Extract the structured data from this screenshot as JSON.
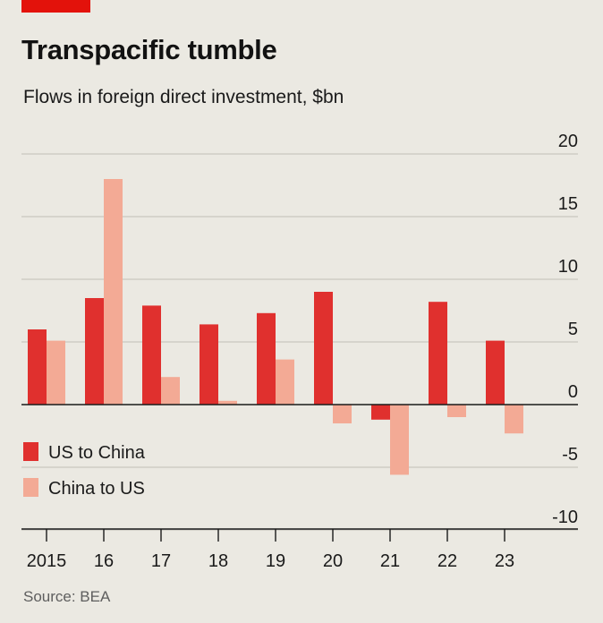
{
  "header": {
    "title": "Transpacific tumble",
    "subtitle": "Flows in foreign direct investment, $bn"
  },
  "footer": {
    "source": "Source: BEA"
  },
  "colors": {
    "accent": "#e3120b",
    "us_to_china": "#e0302e",
    "china_to_us": "#f3aa95",
    "grid": "#c9c7c0",
    "zero": "#1a1a1a"
  },
  "chart_data": {
    "type": "bar",
    "title": "Transpacific tumble",
    "subtitle": "Flows in foreign direct investment, $bn",
    "categories": [
      "2015",
      "16",
      "17",
      "18",
      "19",
      "20",
      "21",
      "22",
      "23"
    ],
    "series": [
      {
        "name": "US to China",
        "values": [
          6.0,
          8.5,
          7.9,
          6.4,
          7.3,
          9.0,
          -1.2,
          8.2,
          5.1
        ]
      },
      {
        "name": "China to US",
        "values": [
          5.1,
          18.0,
          2.2,
          0.3,
          3.6,
          -1.5,
          -5.6,
          -1.0,
          -2.3
        ]
      }
    ],
    "yticks": [
      20,
      15,
      10,
      5,
      0,
      -5,
      -10
    ],
    "ylim": [
      -10,
      20
    ],
    "yaxis_side": "right",
    "grid": true,
    "legend_placement": "bottom-left",
    "source": "Source: BEA"
  }
}
